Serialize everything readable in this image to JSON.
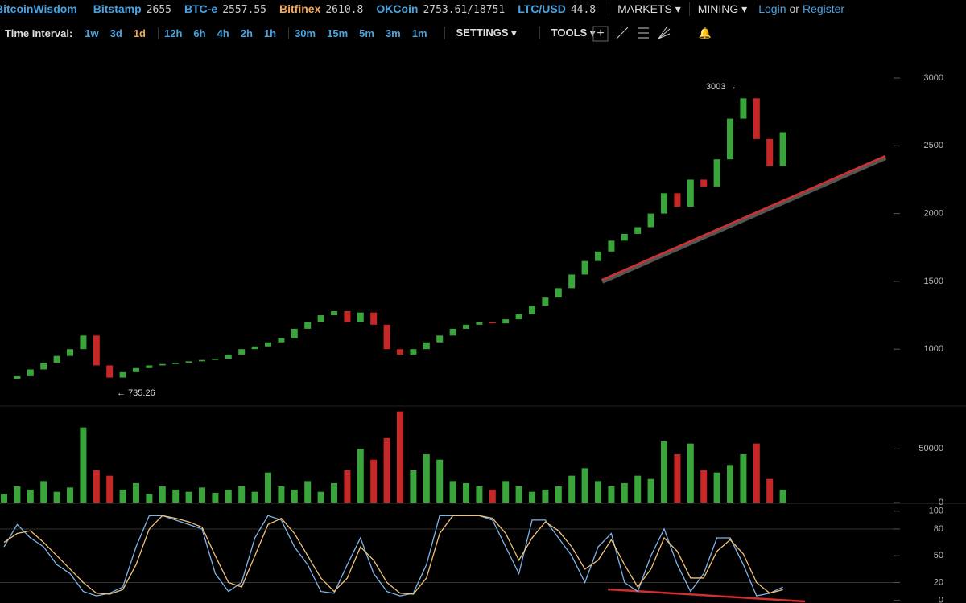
{
  "header": {
    "brand": "BitcoinWisdom",
    "tickers": [
      {
        "name": "Bitstamp",
        "price": "2655"
      },
      {
        "name": "BTC-e",
        "price": "2557.55"
      },
      {
        "name": "Bitfinex",
        "price": "2610.8"
      },
      {
        "name": "OKCoin",
        "price": "2753.61/18751"
      },
      {
        "name": "LTC/USD",
        "price": "44.8"
      }
    ],
    "menus": [
      "MARKETS",
      "MINING"
    ],
    "login": "Login",
    "or": "or",
    "register": "Register"
  },
  "toolbar": {
    "label": "Time Interval:",
    "intervals": [
      "1w",
      "3d",
      "1d",
      "12h",
      "6h",
      "4h",
      "2h",
      "1h",
      "30m",
      "15m",
      "5m",
      "3m",
      "1m"
    ],
    "active": "1d",
    "settings": "SETTINGS",
    "tools": "TOOLS"
  },
  "chart_data": [
    {
      "type": "candlestick",
      "up_color": "#3aa53a",
      "down_color": "#c62828",
      "values": [
        780,
        800,
        850,
        900,
        950,
        1000,
        1100,
        880,
        790,
        830,
        860,
        880,
        890,
        900,
        910,
        920,
        930,
        960,
        1000,
        1020,
        1050,
        1080,
        1150,
        1200,
        1250,
        1280,
        1200,
        1270,
        1180,
        1000,
        960,
        1000,
        1050,
        1100,
        1150,
        1180,
        1200,
        1190,
        1220,
        1260,
        1320,
        1380,
        1450,
        1550,
        1650,
        1720,
        1800,
        1850,
        1900,
        2000,
        2150,
        2050,
        2250,
        2200,
        2400,
        2700,
        2850,
        2550,
        2350,
        2600
      ],
      "ylim": [
        580,
        3190
      ],
      "yticks": [
        1000,
        1500,
        2000,
        2500,
        3000
      ],
      "annotations": [
        "3003 →",
        "← 735.26"
      ]
    },
    {
      "type": "bar",
      "values": [
        8000,
        15000,
        12000,
        20000,
        10000,
        14000,
        70000,
        30000,
        25000,
        12000,
        18000,
        8000,
        15000,
        12000,
        10000,
        14000,
        9000,
        12000,
        15000,
        10000,
        28000,
        15000,
        12000,
        20000,
        10000,
        18000,
        30000,
        50000,
        40000,
        60000,
        85000,
        30000,
        45000,
        40000,
        20000,
        18000,
        15000,
        12000,
        20000,
        15000,
        10000,
        12000,
        15000,
        25000,
        32000,
        20000,
        15000,
        18000,
        25000,
        22000,
        57000,
        45000,
        55000,
        30000,
        28000,
        35000,
        45000,
        55000,
        22000,
        12000
      ],
      "ylim": [
        0,
        90000
      ],
      "yticks": [
        0,
        50000
      ]
    },
    {
      "type": "line",
      "series": [
        {
          "color": "#7fb3e6",
          "values": [
            60,
            85,
            70,
            60,
            40,
            30,
            10,
            5,
            8,
            15,
            60,
            95,
            95,
            90,
            85,
            80,
            30,
            10,
            20,
            70,
            95,
            90,
            60,
            40,
            10,
            8,
            40,
            70,
            30,
            10,
            5,
            8,
            40,
            95,
            95,
            95,
            95,
            90,
            60,
            30,
            90,
            90,
            70,
            50,
            20,
            60,
            75,
            20,
            10,
            50,
            80,
            40,
            10,
            30,
            70,
            70,
            40,
            5,
            8,
            15
          ]
        },
        {
          "color": "#f0c27a",
          "values": [
            65,
            75,
            78,
            65,
            50,
            35,
            20,
            8,
            7,
            12,
            40,
            80,
            95,
            92,
            88,
            82,
            50,
            20,
            15,
            50,
            85,
            92,
            75,
            50,
            25,
            10,
            25,
            60,
            45,
            20,
            8,
            7,
            25,
            75,
            95,
            95,
            95,
            92,
            75,
            45,
            70,
            88,
            78,
            60,
            35,
            45,
            68,
            40,
            15,
            35,
            70,
            55,
            25,
            25,
            55,
            68,
            52,
            20,
            8,
            12
          ]
        }
      ],
      "ylim": [
        -3,
        107
      ],
      "yticks": [
        0,
        20,
        50,
        80,
        100
      ],
      "grid_at": [
        20,
        80
      ]
    }
  ]
}
